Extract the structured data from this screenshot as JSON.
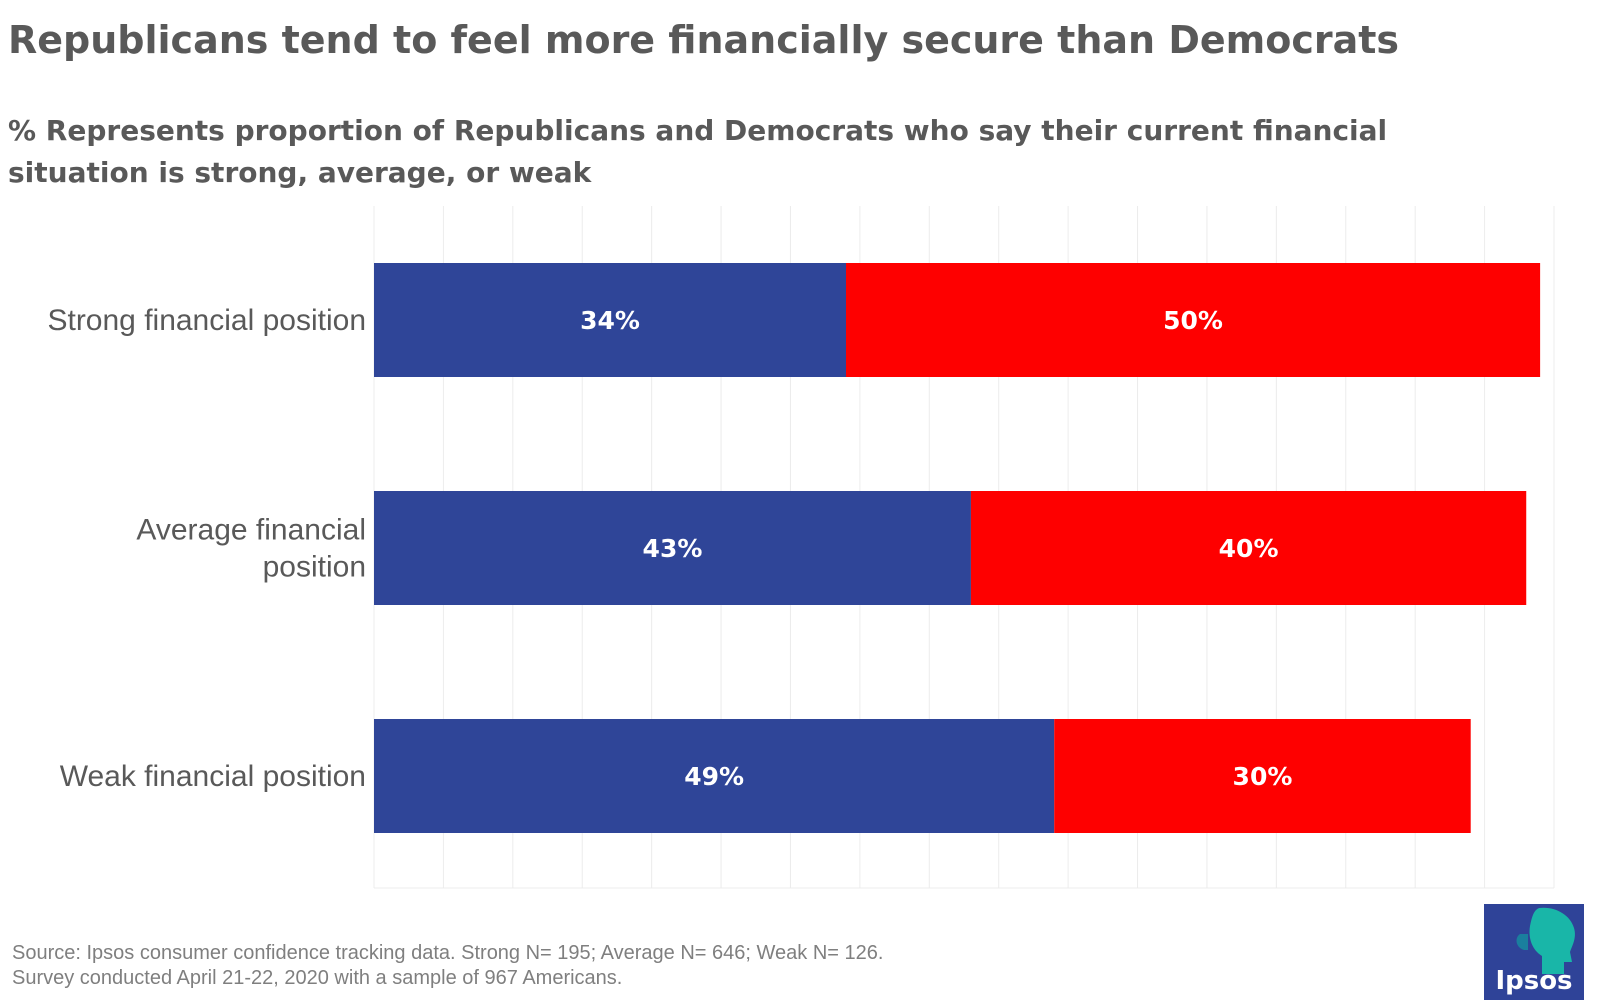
{
  "title": "Republicans tend to feel more financially secure than Democrats",
  "subtitle": "% Represents proportion of Republicans and Democrats who say their current financial situation is strong, average, or weak",
  "colors": {
    "democrats": "#2f4598",
    "republicans": "#fe0000",
    "grid": "#ececec",
    "category_text": "#595959",
    "bar_label_text": "#ffffff"
  },
  "chart_data": {
    "type": "bar",
    "orientation": "horizontal",
    "stacked": true,
    "categories": [
      [
        "Strong financial position"
      ],
      [
        "Average financial",
        "position"
      ],
      [
        "Weak financial position"
      ]
    ],
    "series": [
      {
        "name": "Democrats",
        "color": "#2f4598",
        "values": [
          34,
          43,
          49
        ],
        "labels": [
          "34%",
          "43%",
          "49%"
        ]
      },
      {
        "name": "Republicans",
        "color": "#fe0000",
        "values": [
          50,
          40,
          30
        ],
        "labels": [
          "50%",
          "40%",
          "30%"
        ]
      }
    ],
    "title": "Republicans tend to feel more financially secure than Democrats",
    "xlabel": "",
    "ylabel": "",
    "xlim": [
      0,
      85
    ],
    "grid": true,
    "legend": "none"
  },
  "footer": {
    "line1": "Source: Ipsos consumer confidence tracking data. Strong N= 195; Average N= 646; Weak N= 126.",
    "line2": "Survey conducted April 21-22, 2020 with a sample of 967 Americans."
  },
  "logo": {
    "text": "Ipsos",
    "icon": "ipsos-head-icon"
  }
}
